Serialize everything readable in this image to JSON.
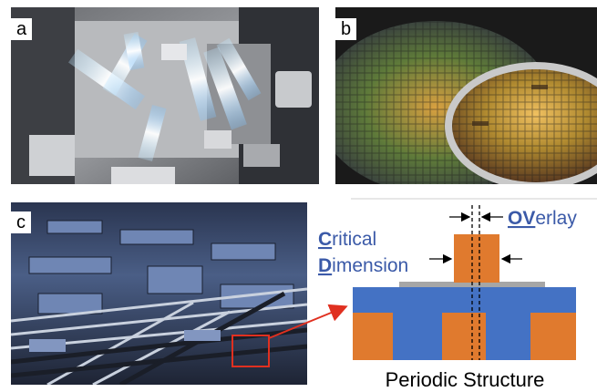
{
  "panels": [
    {
      "id": "a",
      "label": "a"
    },
    {
      "id": "b",
      "label": "b"
    },
    {
      "id": "c",
      "label": "c"
    }
  ],
  "diagram": {
    "overlay_label_initial": "OV",
    "overlay_label_rest": "erlay",
    "critical_initial": "C",
    "critical_rest": "ritical",
    "dimension_initial": "D",
    "dimension_rest": "imension",
    "caption": "Periodic Structure",
    "colors": {
      "orange": "#E07A2E",
      "blue": "#4472C4",
      "gray": "#A6A6A6",
      "label_text": "#3B5AA8",
      "arrow_red": "#E03020"
    }
  }
}
